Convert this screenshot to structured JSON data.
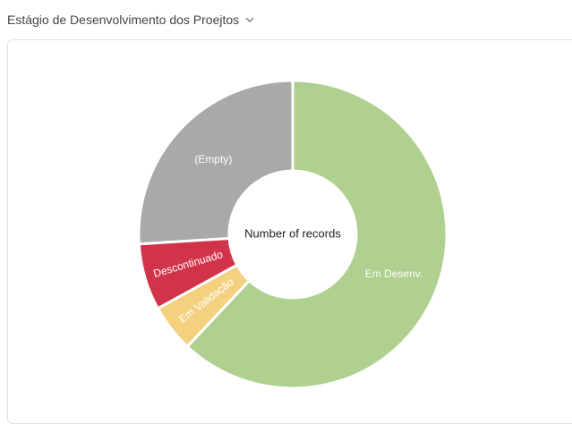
{
  "header": {
    "title": "Estágio de Desenvolvimento dos Proejtos"
  },
  "chart_data": {
    "type": "donut",
    "center_label": "Number of records",
    "categories": [
      "Em Desenv.",
      "Em Validação",
      "Descontinuado",
      "(Empty)"
    ],
    "values": [
      62,
      5,
      7,
      26
    ],
    "colors": [
      "#afd08f",
      "#f4d17f",
      "#d1344a",
      "#a9a9a9"
    ]
  }
}
